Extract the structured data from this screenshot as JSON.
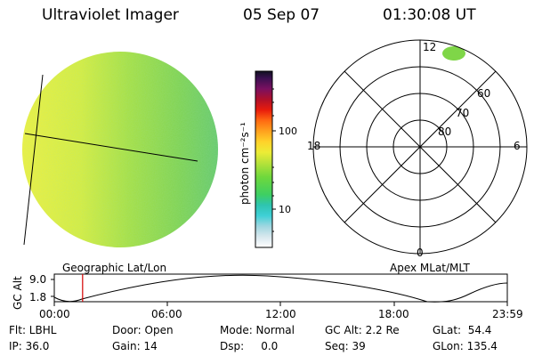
{
  "header": {
    "instrument": "Ultraviolet Imager",
    "date": "05 Sep 07",
    "time": "01:30:08 UT"
  },
  "left_panel": {
    "projection_label": "Geographic Lat/Lon"
  },
  "colorbar": {
    "unit_label": "photon cm⁻²s⁻¹",
    "ticks": [
      "100",
      "10"
    ]
  },
  "polar_plot": {
    "projection_label": "Apex MLat/MLT",
    "mlt_labels": {
      "top": "12",
      "left": "18",
      "right": "6",
      "bottom": "0"
    },
    "lat_labels": [
      "60",
      "70",
      "80"
    ]
  },
  "altitude_plot": {
    "ylabel": "GC Alt",
    "y_ticks": [
      "9.0",
      "1.8"
    ],
    "x_ticks": [
      "00:00",
      "06:00",
      "12:00",
      "18:00",
      "23:59"
    ],
    "current_time_fraction": 0.0625,
    "marker_color": "#d40000"
  },
  "status": {
    "flt": "Flt: LBHL",
    "ip": "IP: 36.0",
    "door": "Door: Open",
    "gain": "Gain: 14",
    "mode": "Mode: Normal",
    "dsp": "Dsp:     0.0",
    "gc_alt": "GC Alt: 2.2 Re",
    "seq": "Seq: 39",
    "glat": "GLat:  54.4",
    "glon": "GLon: 135.4"
  }
}
